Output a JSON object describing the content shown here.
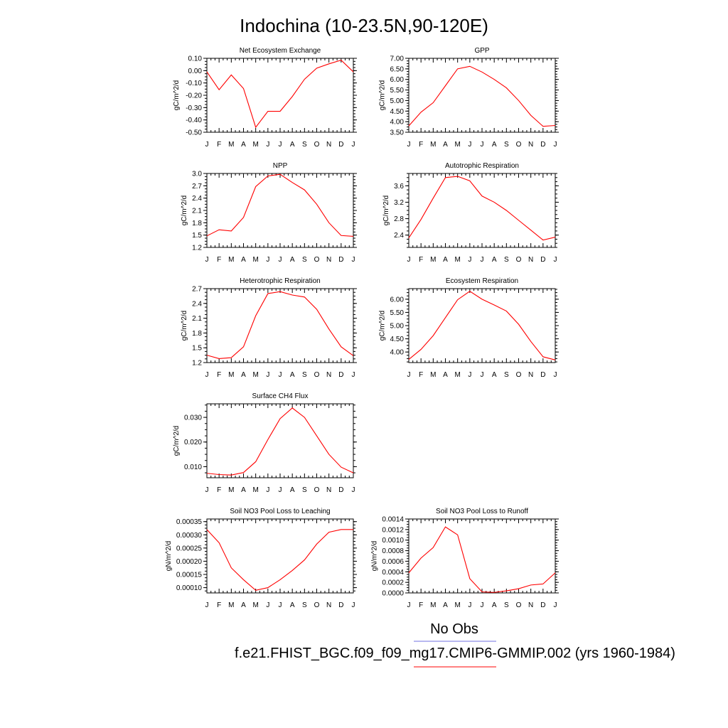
{
  "figure": {
    "title": "Indochina (10-23.5N,90-120E)",
    "legend": [
      {
        "label": "No Obs",
        "color": "#7070e0"
      },
      {
        "label": "f.e21.FHIST_BGC.f09_f09_mg17.CMIP6-GMMIP.002 (yrs 1960-1984)",
        "color": "#ff0000"
      }
    ]
  },
  "chart_data": [
    {
      "type": "line",
      "title": "Net Ecosystem Exchange",
      "ylabel": "gC/m^2/d",
      "categories": [
        "J",
        "F",
        "M",
        "A",
        "M",
        "J",
        "J",
        "A",
        "S",
        "O",
        "N",
        "D",
        "J"
      ],
      "ylim": [
        -0.5,
        0.1
      ],
      "yticks": [
        -0.5,
        -0.4,
        -0.3,
        -0.2,
        -0.1,
        0.0,
        0.1
      ],
      "ytick_labels": [
        "-0.50",
        "-0.40",
        "-0.30",
        "-0.20",
        "-0.10",
        "0.00",
        "0.10"
      ],
      "series": [
        {
          "color": "#ff0000",
          "values": [
            -0.01,
            -0.155,
            -0.035,
            -0.145,
            -0.46,
            -0.33,
            -0.33,
            -0.21,
            -0.07,
            0.02,
            0.055,
            0.085,
            -0.01
          ]
        }
      ]
    },
    {
      "type": "line",
      "title": "GPP",
      "ylabel": "gC/m^2/d",
      "categories": [
        "J",
        "F",
        "M",
        "A",
        "M",
        "J",
        "J",
        "A",
        "S",
        "O",
        "N",
        "D",
        "J"
      ],
      "ylim": [
        3.5,
        7.0
      ],
      "yticks": [
        3.5,
        4.0,
        4.5,
        5.0,
        5.5,
        6.0,
        6.5,
        7.0
      ],
      "ytick_labels": [
        "3.50",
        "4.00",
        "4.50",
        "5.00",
        "5.50",
        "6.00",
        "6.50",
        "7.00"
      ],
      "series": [
        {
          "color": "#ff0000",
          "values": [
            3.8,
            4.45,
            4.9,
            5.7,
            6.5,
            6.62,
            6.35,
            6.0,
            5.6,
            5.0,
            4.3,
            3.78,
            3.82
          ]
        }
      ]
    },
    {
      "type": "line",
      "title": "NPP",
      "ylabel": "gC/m^2/d",
      "categories": [
        "J",
        "F",
        "M",
        "A",
        "M",
        "J",
        "J",
        "A",
        "S",
        "O",
        "N",
        "D",
        "J"
      ],
      "ylim": [
        1.2,
        3.0
      ],
      "yticks": [
        1.2,
        1.5,
        1.8,
        2.1,
        2.4,
        2.7,
        3.0
      ],
      "ytick_labels": [
        "1.2",
        "1.5",
        "1.8",
        "2.1",
        "2.4",
        "2.7",
        "3.0"
      ],
      "series": [
        {
          "color": "#ff0000",
          "values": [
            1.48,
            1.63,
            1.6,
            1.93,
            2.68,
            2.94,
            2.98,
            2.78,
            2.6,
            2.25,
            1.8,
            1.49,
            1.47
          ]
        }
      ]
    },
    {
      "type": "line",
      "title": "Autotrophic Respiration",
      "ylabel": "gC/m^2/d",
      "categories": [
        "J",
        "F",
        "M",
        "A",
        "M",
        "J",
        "J",
        "A",
        "S",
        "O",
        "N",
        "D",
        "J"
      ],
      "ylim": [
        2.1,
        3.9
      ],
      "yticks": [
        2.4,
        2.8,
        3.2,
        3.6
      ],
      "ytick_labels": [
        "2.4",
        "2.8",
        "3.2",
        "3.6"
      ],
      "series": [
        {
          "color": "#ff0000",
          "values": [
            2.33,
            2.78,
            3.3,
            3.8,
            3.83,
            3.72,
            3.35,
            3.2,
            3.0,
            2.76,
            2.52,
            2.28,
            2.35
          ]
        }
      ]
    },
    {
      "type": "line",
      "title": "Heterotrophic Respiration",
      "ylabel": "gC/m^2/d",
      "categories": [
        "J",
        "F",
        "M",
        "A",
        "M",
        "J",
        "J",
        "A",
        "S",
        "O",
        "N",
        "D",
        "J"
      ],
      "ylim": [
        1.2,
        2.7
      ],
      "yticks": [
        1.2,
        1.5,
        1.8,
        2.1,
        2.4,
        2.7
      ],
      "ytick_labels": [
        "1.2",
        "1.5",
        "1.8",
        "2.1",
        "2.4",
        "2.7"
      ],
      "series": [
        {
          "color": "#ff0000",
          "values": [
            1.35,
            1.28,
            1.3,
            1.52,
            2.15,
            2.6,
            2.64,
            2.57,
            2.53,
            2.28,
            1.88,
            1.52,
            1.34
          ]
        }
      ]
    },
    {
      "type": "line",
      "title": "Ecosystem Respiration",
      "ylabel": "gC/m^2/d",
      "categories": [
        "J",
        "F",
        "M",
        "A",
        "M",
        "J",
        "J",
        "A",
        "S",
        "O",
        "N",
        "D",
        "J"
      ],
      "ylim": [
        3.6,
        6.4
      ],
      "yticks": [
        4.0,
        4.5,
        5.0,
        5.5,
        6.0
      ],
      "ytick_labels": [
        "4.00",
        "4.50",
        "5.00",
        "5.50",
        "6.00"
      ],
      "series": [
        {
          "color": "#ff0000",
          "values": [
            3.72,
            4.1,
            4.62,
            5.3,
            5.98,
            6.3,
            6.0,
            5.78,
            5.55,
            5.05,
            4.4,
            3.82,
            3.7
          ]
        }
      ]
    },
    {
      "type": "line",
      "title": "Surface CH4 Flux",
      "ylabel": "gC/m^2/d",
      "categories": [
        "J",
        "F",
        "M",
        "A",
        "M",
        "J",
        "J",
        "A",
        "S",
        "O",
        "N",
        "D",
        "J"
      ],
      "ylim": [
        0.0055,
        0.0355
      ],
      "yticks": [
        0.01,
        0.02,
        0.03
      ],
      "ytick_labels": [
        "0.010",
        "0.020",
        "0.030"
      ],
      "series": [
        {
          "color": "#ff0000",
          "values": [
            0.0073,
            0.0068,
            0.0066,
            0.0076,
            0.012,
            0.021,
            0.0295,
            0.0338,
            0.03,
            0.0225,
            0.015,
            0.0098,
            0.0075
          ]
        }
      ]
    },
    {
      "type": "line",
      "title": "Soil NO3 Pool Loss to Leaching",
      "ylabel": "gN/m^2/d",
      "categories": [
        "J",
        "F",
        "M",
        "A",
        "M",
        "J",
        "J",
        "A",
        "S",
        "O",
        "N",
        "D",
        "J"
      ],
      "ylim": [
        8e-05,
        0.00036
      ],
      "yticks": [
        0.0001,
        0.00015,
        0.0002,
        0.00025,
        0.0003,
        0.00035
      ],
      "ytick_labels": [
        "0.00010",
        "0.00015",
        "0.00020",
        "0.00025",
        "0.00030",
        "0.00035"
      ],
      "series": [
        {
          "color": "#ff0000",
          "values": [
            0.00032,
            0.00027,
            0.000175,
            0.00013,
            9e-05,
            0.0001,
            0.00013,
            0.000165,
            0.000205,
            0.000265,
            0.00031,
            0.00032,
            0.00032
          ]
        }
      ]
    },
    {
      "type": "line",
      "title": "Soil NO3 Pool Loss to Runoff",
      "ylabel": "gN/m^2/d",
      "categories": [
        "J",
        "F",
        "M",
        "A",
        "M",
        "J",
        "J",
        "A",
        "S",
        "O",
        "N",
        "D",
        "J"
      ],
      "ylim": [
        0.0,
        0.0014
      ],
      "yticks": [
        0.0,
        0.0002,
        0.0004,
        0.0006,
        0.0008,
        0.001,
        0.0012,
        0.0014
      ],
      "ytick_labels": [
        "0.0000",
        "0.0002",
        "0.0004",
        "0.0006",
        "0.0008",
        "0.0010",
        "0.0012",
        "0.0014"
      ],
      "series": [
        {
          "color": "#ff0000",
          "values": [
            0.00038,
            0.00066,
            0.00086,
            0.00125,
            0.0011,
            0.00027,
            2e-05,
            1e-05,
            4e-05,
            8e-05,
            0.00015,
            0.00017,
            0.00038
          ]
        }
      ]
    }
  ]
}
